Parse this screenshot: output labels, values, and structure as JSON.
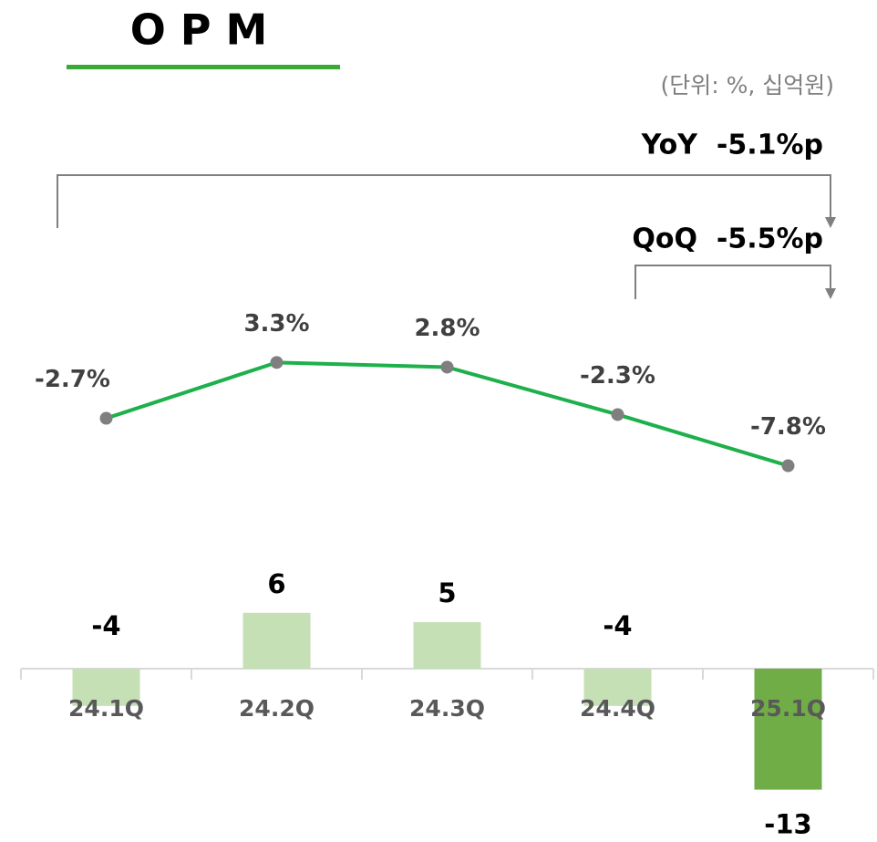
{
  "chart_data": {
    "type": "combo",
    "title": "O P M",
    "unit_label": "(단위: %, 십억원)",
    "annotations": [
      "YoY  -5.1%p",
      "QoQ  -5.5%p"
    ],
    "categories": [
      "24.1Q",
      "24.2Q",
      "24.3Q",
      "24.4Q",
      "25.1Q"
    ],
    "series": [
      {
        "type": "line",
        "color": "#1db04b",
        "marker_color": "#7f7f7f",
        "values": [
          -2.7,
          3.3,
          2.8,
          -2.3,
          -7.8
        ],
        "value_labels": [
          "-2.7%",
          "3.3%",
          "2.8%",
          "-2.3%",
          "-7.8%"
        ]
      },
      {
        "type": "bar",
        "colors": [
          "#c5e0b4",
          "#c5e0b4",
          "#c5e0b4",
          "#c5e0b4",
          "#70ad47"
        ],
        "values": [
          -4,
          6,
          5,
          -4,
          -13
        ]
      }
    ]
  }
}
